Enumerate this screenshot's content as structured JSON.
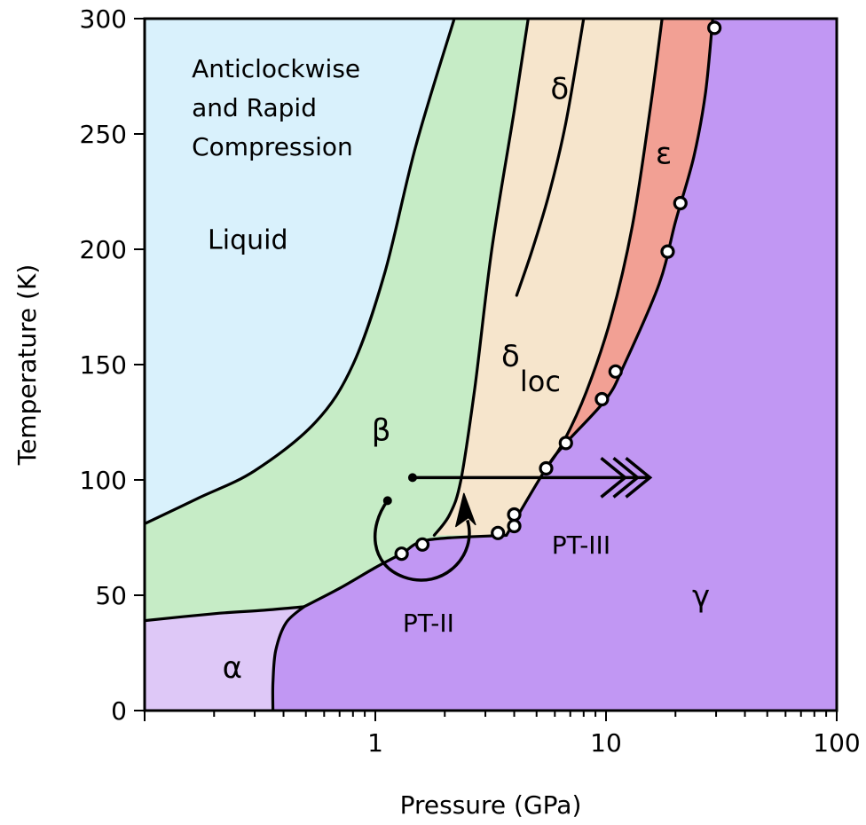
{
  "chart_data": {
    "type": "phase-diagram",
    "xlabel": "Pressure (GPa)",
    "ylabel": "Temperature (K)",
    "x_scale": "log",
    "xlim": [
      0.1,
      100
    ],
    "ylim": [
      0,
      300
    ],
    "x_ticks": [
      {
        "value": 1,
        "label": "1"
      },
      {
        "value": 10,
        "label": "10"
      },
      {
        "value": 100,
        "label": "100"
      }
    ],
    "y_ticks": [
      {
        "value": 0,
        "label": "0"
      },
      {
        "value": 50,
        "label": "50"
      },
      {
        "value": 100,
        "label": "100"
      },
      {
        "value": 150,
        "label": "150"
      },
      {
        "value": 200,
        "label": "200"
      },
      {
        "value": 250,
        "label": "250"
      },
      {
        "value": 300,
        "label": "300"
      }
    ],
    "grid": false,
    "colors": {
      "liquid": "#d9f1fc",
      "beta": "#c6ecc6",
      "delta": "#f6e5cc",
      "epsilon": "#f2a094",
      "gamma": "#c197f3",
      "alpha": "#dec8f7"
    },
    "boundaries": {
      "liquid_beta": [
        [
          0.1,
          81
        ],
        [
          0.17,
          92
        ],
        [
          0.3,
          104
        ],
        [
          0.55,
          125
        ],
        [
          0.8,
          150
        ],
        [
          1.1,
          190
        ],
        [
          1.5,
          245
        ],
        [
          2.2,
          300
        ]
      ],
      "beta_delta": [
        [
          1.8,
          76
        ],
        [
          2.1,
          85
        ],
        [
          2.35,
          100
        ],
        [
          2.7,
          140
        ],
        [
          3.2,
          200
        ],
        [
          4.0,
          260
        ],
        [
          4.6,
          300
        ]
      ],
      "delta_epsilon": [
        [
          5.5,
          105
        ],
        [
          6.5,
          116
        ],
        [
          8.2,
          138
        ],
        [
          10.5,
          170
        ],
        [
          13,
          210
        ],
        [
          15.5,
          260
        ],
        [
          17.5,
          300
        ]
      ],
      "epsilon_gamma": [
        [
          3.7,
          76
        ],
        [
          5.5,
          105
        ],
        [
          6.7,
          116
        ],
        [
          10,
          135
        ],
        [
          12,
          150
        ],
        [
          17,
          185
        ],
        [
          20,
          212
        ],
        [
          24,
          240
        ],
        [
          27,
          268
        ],
        [
          29,
          300
        ]
      ],
      "beta_gamma": [
        [
          0.49,
          45
        ],
        [
          0.7,
          53
        ],
        [
          1.0,
          62
        ],
        [
          1.3,
          68
        ],
        [
          1.7,
          74
        ],
        [
          3.7,
          76
        ]
      ],
      "alpha_beta": [
        [
          0.1,
          39
        ],
        [
          0.2,
          42
        ],
        [
          0.33,
          43.5
        ],
        [
          0.49,
          45
        ]
      ],
      "alpha_gamma": [
        [
          0.49,
          45
        ],
        [
          0.41,
          38
        ],
        [
          0.37,
          26
        ],
        [
          0.36,
          12
        ],
        [
          0.36,
          0
        ]
      ],
      "delta_inner": [
        [
          4.1,
          180
        ],
        [
          4.8,
          200
        ],
        [
          5.7,
          225
        ],
        [
          6.7,
          255
        ],
        [
          8,
          300
        ]
      ]
    },
    "data_points": [
      {
        "x": 1.3,
        "y": 68
      },
      {
        "x": 1.6,
        "y": 72
      },
      {
        "x": 3.4,
        "y": 77
      },
      {
        "x": 4.0,
        "y": 80
      },
      {
        "x": 4.0,
        "y": 85
      },
      {
        "x": 5.5,
        "y": 105
      },
      {
        "x": 6.7,
        "y": 116
      },
      {
        "x": 9.6,
        "y": 135
      },
      {
        "x": 11,
        "y": 147
      },
      {
        "x": 18.5,
        "y": 199
      },
      {
        "x": 21,
        "y": 220
      },
      {
        "x": 29.5,
        "y": 296
      }
    ],
    "regions": [
      {
        "key": "liquid",
        "label": "Liquid",
        "x": 0.28,
        "y": 204
      },
      {
        "key": "beta",
        "label": "β",
        "x": 1.06,
        "y": 121
      },
      {
        "key": "delta",
        "label": "δ",
        "x": 6.3,
        "y": 269
      },
      {
        "key": "delta_loc",
        "label": "δ",
        "subscript": "loc",
        "x": 4.2,
        "y": 153
      },
      {
        "key": "epsilon",
        "label": "ε",
        "x": 17.8,
        "y": 241
      },
      {
        "key": "gamma",
        "label": "γ",
        "x": 25.8,
        "y": 49
      },
      {
        "key": "alpha",
        "label": "α",
        "x": 0.24,
        "y": 18
      }
    ],
    "annotations": [
      {
        "lines": [
          "Anticlockwise",
          "and Rapid",
          "Compression"
        ],
        "x": 0.16,
        "y": 278
      }
    ],
    "paths": [
      {
        "name": "PT-III",
        "label": "PT-III",
        "start": [
          1.45,
          101
        ],
        "end": [
          15.5,
          101
        ],
        "arrow": "triple-chevron",
        "label_pos": [
          7.8,
          72
        ]
      },
      {
        "name": "PT-II",
        "label": "PT-II",
        "start": [
          1.13,
          91
        ],
        "direction": "anticlockwise",
        "label_pos": [
          1.7,
          38
        ]
      }
    ]
  }
}
